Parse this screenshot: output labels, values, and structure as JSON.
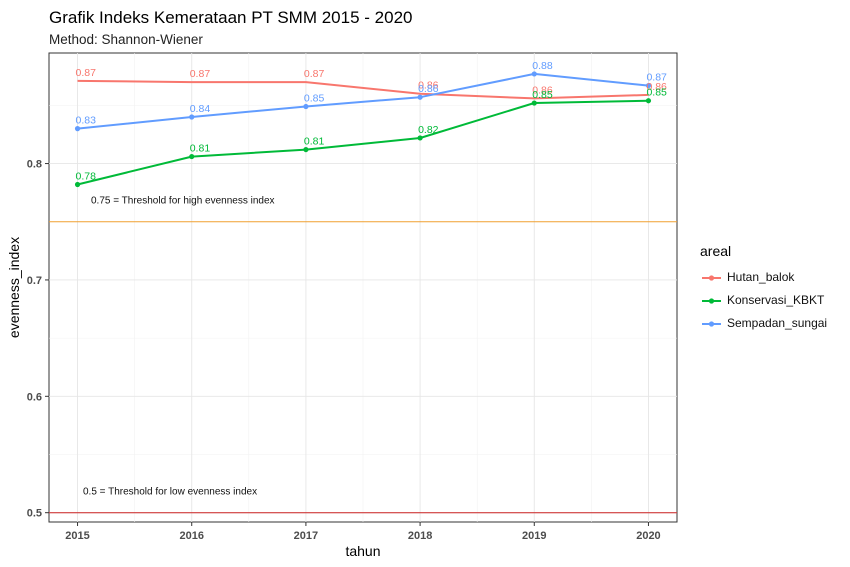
{
  "chart_data": {
    "type": "line",
    "title": "Grafik Indeks Kemerataan PT SMM 2015 - 2020",
    "subtitle": "Method: Shannon-Wiener",
    "xlabel": "tahun",
    "ylabel": "evenness_index",
    "x": [
      2015,
      2016,
      2017,
      2018,
      2019,
      2020
    ],
    "ylim": [
      0.492,
      0.895
    ],
    "yticks": [
      0.5,
      0.6,
      0.7,
      0.8
    ],
    "ytick_labels": [
      "0.5",
      "0.6",
      "0.7",
      "0.8"
    ],
    "xtick_labels": [
      "2015",
      "2016",
      "2017",
      "2018",
      "2019",
      "2020"
    ],
    "grid": true,
    "legend": {
      "title": "areal",
      "position": "right"
    },
    "series": [
      {
        "name": "Hutan_balok",
        "color": "#F8766D",
        "values": [
          0.871,
          0.87,
          0.87,
          0.86,
          0.856,
          0.859
        ],
        "labels": [
          "0.87",
          "0.87",
          "0.87",
          "0.86",
          "0.86",
          "0.86"
        ],
        "show_markers": false
      },
      {
        "name": "Konservasi_KBKT",
        "color": "#00BA38",
        "values": [
          0.782,
          0.806,
          0.812,
          0.822,
          0.852,
          0.854
        ],
        "labels": [
          "0.78",
          "0.81",
          "0.81",
          "0.82",
          "0.85",
          "0.85"
        ],
        "show_markers": true
      },
      {
        "name": "Sempadan_sungai",
        "color": "#619CFF",
        "values": [
          0.83,
          0.84,
          0.849,
          0.857,
          0.877,
          0.867
        ],
        "labels": [
          "0.83",
          "0.84",
          "0.85",
          "0.86",
          "0.88",
          "0.87"
        ],
        "show_markers": true
      }
    ],
    "reference_lines": [
      {
        "value": 0.75,
        "color": "#F0A030",
        "label": "0.75 = Threshold for high evenness index"
      },
      {
        "value": 0.5,
        "color": "#CC2222",
        "label": "0.5 = Threshold for low evenness index"
      }
    ]
  }
}
